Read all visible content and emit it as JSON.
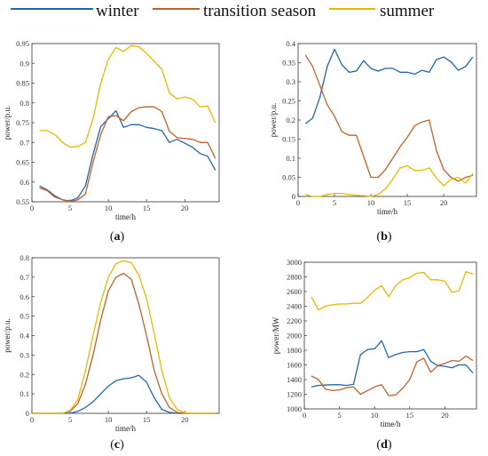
{
  "legend": [
    {
      "label": "winter",
      "color": "#2166ac"
    },
    {
      "label": "transition season",
      "color": "#c0612a"
    },
    {
      "label": "summer",
      "color": "#e8b800"
    }
  ],
  "chart_data": [
    {
      "panel": "a",
      "type": "line",
      "xlabel": "time/h",
      "ylabel": "power/p.u.",
      "xlim": [
        0,
        24.5
      ],
      "ylim": [
        0.55,
        0.95
      ],
      "xticks": [
        "0",
        "5",
        "10",
        "15",
        "20"
      ],
      "yticks": [
        "0.55",
        "0.6",
        "0.65",
        "0.7",
        "0.75",
        "0.8",
        "0.85",
        "0.9",
        "0.95"
      ],
      "x": [
        1,
        2,
        3,
        4,
        5,
        6,
        7,
        8,
        9,
        10,
        11,
        12,
        13,
        14,
        15,
        16,
        17,
        18,
        19,
        20,
        21,
        22,
        23,
        24
      ],
      "series": [
        {
          "name": "winter",
          "values": [
            0.59,
            0.58,
            0.565,
            0.555,
            0.552,
            0.56,
            0.59,
            0.67,
            0.74,
            0.76,
            0.78,
            0.738,
            0.745,
            0.745,
            0.738,
            0.735,
            0.73,
            0.7,
            0.708,
            0.698,
            0.688,
            0.672,
            0.665,
            0.63
          ]
        },
        {
          "name": "transition season",
          "values": [
            0.585,
            0.578,
            0.562,
            0.555,
            0.55,
            0.555,
            0.57,
            0.65,
            0.72,
            0.765,
            0.768,
            0.755,
            0.778,
            0.788,
            0.79,
            0.79,
            0.778,
            0.728,
            0.712,
            0.71,
            0.708,
            0.7,
            0.7,
            0.66
          ]
        },
        {
          "name": "summer",
          "values": [
            0.73,
            0.73,
            0.72,
            0.7,
            0.688,
            0.69,
            0.7,
            0.76,
            0.85,
            0.91,
            0.94,
            0.93,
            0.945,
            0.942,
            0.925,
            0.905,
            0.885,
            0.825,
            0.81,
            0.815,
            0.81,
            0.79,
            0.792,
            0.75
          ]
        }
      ]
    },
    {
      "panel": "b",
      "type": "line",
      "xlabel": "time/h",
      "ylabel": "power/p.u.",
      "xlim": [
        0,
        24.5
      ],
      "ylim": [
        0,
        0.4
      ],
      "xticks": [
        "0",
        "5",
        "10",
        "15",
        "20"
      ],
      "yticks": [
        "0",
        "0.05",
        "0.1",
        "0.15",
        "0.2",
        "0.25",
        "0.3",
        "0.35",
        "0.4"
      ],
      "x": [
        1,
        2,
        3,
        4,
        5,
        6,
        7,
        8,
        9,
        10,
        11,
        12,
        13,
        14,
        15,
        16,
        17,
        18,
        19,
        20,
        21,
        22,
        23,
        24
      ],
      "series": [
        {
          "name": "winter",
          "values": [
            0.19,
            0.205,
            0.26,
            0.34,
            0.385,
            0.345,
            0.325,
            0.328,
            0.355,
            0.335,
            0.328,
            0.335,
            0.335,
            0.325,
            0.325,
            0.32,
            0.33,
            0.325,
            0.358,
            0.365,
            0.352,
            0.33,
            0.34,
            0.365
          ]
        },
        {
          "name": "transition season",
          "values": [
            0.37,
            0.34,
            0.29,
            0.24,
            0.21,
            0.17,
            0.16,
            0.16,
            0.105,
            0.05,
            0.05,
            0.07,
            0.1,
            0.13,
            0.155,
            0.185,
            0.195,
            0.2,
            0.12,
            0.07,
            0.05,
            0.04,
            0.05,
            0.055
          ]
        },
        {
          "name": "summer",
          "values": [
            0.005,
            0.0,
            0.0,
            0.005,
            0.008,
            0.008,
            0.005,
            0.003,
            0.002,
            0.0,
            0.005,
            0.02,
            0.045,
            0.075,
            0.08,
            0.068,
            0.068,
            0.075,
            0.048,
            0.028,
            0.045,
            0.05,
            0.035,
            0.06
          ]
        }
      ]
    },
    {
      "panel": "c",
      "type": "line",
      "xlabel": "time/h",
      "ylabel": "power/p.u.",
      "xlim": [
        0,
        24.5
      ],
      "ylim": [
        0,
        0.8
      ],
      "xticks": [
        "0",
        "5",
        "10",
        "15",
        "20"
      ],
      "yticks": [
        "0",
        "0.1",
        "0.2",
        "0.3",
        "0.4",
        "0.5",
        "0.6",
        "0.7",
        "0.8"
      ],
      "x": [
        0,
        1,
        2,
        3,
        4,
        5,
        6,
        7,
        8,
        9,
        10,
        11,
        12,
        13,
        14,
        15,
        16,
        17,
        18,
        19,
        20,
        21,
        22,
        23,
        24
      ],
      "series": [
        {
          "name": "winter",
          "values": [
            0,
            0,
            0,
            0,
            0,
            0,
            0.01,
            0.03,
            0.06,
            0.1,
            0.14,
            0.168,
            0.178,
            0.183,
            0.195,
            0.16,
            0.08,
            0.02,
            0.005,
            0,
            0,
            0,
            0,
            0,
            0
          ]
        },
        {
          "name": "transition season",
          "values": [
            0,
            0,
            0,
            0,
            0,
            0.01,
            0.05,
            0.15,
            0.3,
            0.48,
            0.63,
            0.7,
            0.72,
            0.69,
            0.56,
            0.4,
            0.22,
            0.1,
            0.03,
            0.005,
            0,
            0,
            0,
            0,
            0
          ]
        },
        {
          "name": "summer",
          "values": [
            0,
            0,
            0,
            0,
            0,
            0.015,
            0.07,
            0.22,
            0.4,
            0.57,
            0.7,
            0.77,
            0.785,
            0.775,
            0.71,
            0.59,
            0.41,
            0.22,
            0.08,
            0.02,
            0.003,
            0,
            0,
            0,
            0
          ]
        }
      ]
    },
    {
      "panel": "d",
      "type": "line",
      "xlabel": "time/h",
      "ylabel": "power/MW",
      "xlim": [
        0,
        24.5
      ],
      "ylim": [
        1000,
        3000
      ],
      "xticks": [
        "0",
        "5",
        "10",
        "15",
        "20"
      ],
      "yticks": [
        "1000",
        "1200",
        "1400",
        "1600",
        "1800",
        "2000",
        "2200",
        "2400",
        "2600",
        "2800",
        "3000"
      ],
      "x": [
        1,
        2,
        3,
        4,
        5,
        6,
        7,
        8,
        9,
        10,
        11,
        12,
        13,
        14,
        15,
        16,
        17,
        18,
        19,
        20,
        21,
        22,
        23,
        24
      ],
      "series": [
        {
          "name": "winter",
          "values": [
            1300,
            1320,
            1325,
            1330,
            1330,
            1320,
            1335,
            1740,
            1810,
            1820,
            1930,
            1700,
            1740,
            1770,
            1780,
            1780,
            1810,
            1650,
            1590,
            1580,
            1560,
            1600,
            1600,
            1490
          ]
        },
        {
          "name": "transition season",
          "values": [
            1450,
            1400,
            1270,
            1250,
            1260,
            1290,
            1300,
            1200,
            1250,
            1300,
            1330,
            1180,
            1190,
            1280,
            1400,
            1640,
            1690,
            1500,
            1590,
            1620,
            1660,
            1650,
            1720,
            1660
          ]
        },
        {
          "name": "summer",
          "values": [
            2530,
            2350,
            2400,
            2420,
            2430,
            2430,
            2440,
            2440,
            2520,
            2620,
            2680,
            2530,
            2680,
            2760,
            2790,
            2850,
            2860,
            2760,
            2760,
            2740,
            2590,
            2610,
            2870,
            2840
          ]
        }
      ]
    }
  ],
  "panels": [
    {
      "tag": "(",
      "letter": "a",
      "close": ")"
    },
    {
      "tag": "(",
      "letter": "b",
      "close": ")"
    },
    {
      "tag": "(",
      "letter": "c",
      "close": ")"
    },
    {
      "tag": "(",
      "letter": "d",
      "close": ")"
    }
  ]
}
